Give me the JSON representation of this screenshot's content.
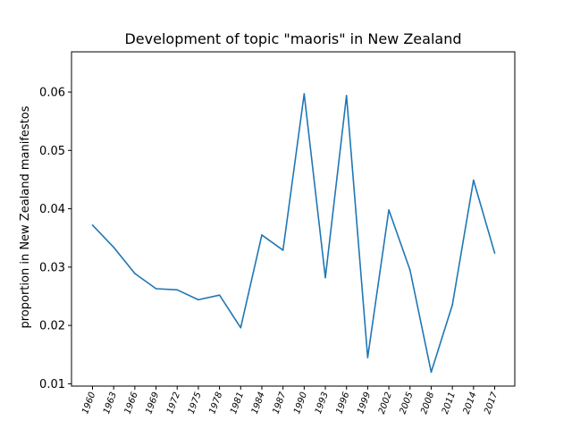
{
  "chart_data": {
    "type": "line",
    "title": "Development of topic \"maoris\" in New Zealand",
    "xlabel": "",
    "ylabel": "proportion in New Zealand manifestos",
    "categories": [
      "1960",
      "1963",
      "1966",
      "1969",
      "1972",
      "1975",
      "1978",
      "1981",
      "1984",
      "1987",
      "1990",
      "1993",
      "1996",
      "1999",
      "2002",
      "2005",
      "2008",
      "2011",
      "2014",
      "2017"
    ],
    "series": [
      {
        "values": [
          0.0372,
          0.0334,
          0.0289,
          0.0263,
          0.0261,
          0.0244,
          0.0252,
          0.0196,
          0.0355,
          0.0329,
          0.0597,
          0.0282,
          0.0594,
          0.0145,
          0.0398,
          0.0295,
          0.012,
          0.0235,
          0.0449,
          0.0324
        ],
        "color": "#1f77b4"
      }
    ],
    "yticks": [
      "0.01",
      "0.02",
      "0.03",
      "0.04",
      "0.05",
      "0.06"
    ],
    "ylim": [
      0.0096,
      0.0669
    ],
    "grid": false,
    "legend": "none"
  }
}
